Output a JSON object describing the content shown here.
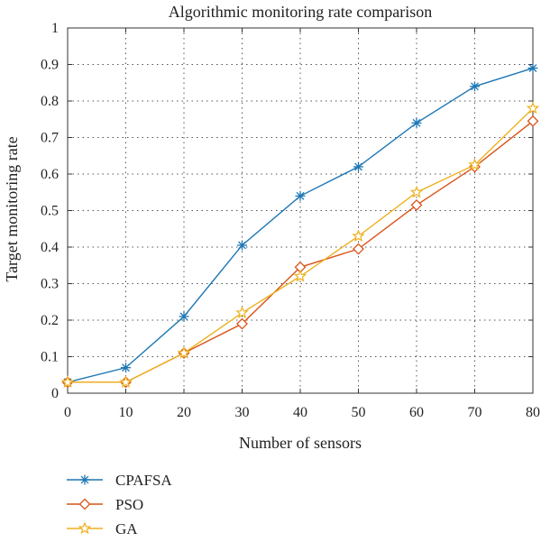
{
  "chart_data": {
    "type": "line",
    "title": "Algorithmic monitoring rate comparison",
    "xlabel": "Number of sensors",
    "ylabel": "Target monitoring rate",
    "x": [
      0,
      10,
      20,
      30,
      40,
      50,
      60,
      70,
      80
    ],
    "xlim": [
      0,
      80
    ],
    "ylim": [
      0,
      1
    ],
    "xticks": [
      "0",
      "10",
      "20",
      "30",
      "40",
      "50",
      "60",
      "70",
      "80"
    ],
    "yticks": [
      "0",
      "0.1",
      "0.2",
      "0.3",
      "0.4",
      "0.5",
      "0.6",
      "0.7",
      "0.8",
      "0.9",
      "1"
    ],
    "grid": true,
    "legend_position": "below",
    "series": [
      {
        "name": "CPAFSA",
        "color": "#1f77b4",
        "marker": "asterisk",
        "values": [
          0.03,
          0.07,
          0.21,
          0.405,
          0.54,
          0.62,
          0.74,
          0.84,
          0.89
        ]
      },
      {
        "name": "PSO",
        "color": "#d95319",
        "marker": "diamond",
        "values": [
          0.03,
          0.03,
          0.11,
          0.19,
          0.345,
          0.395,
          0.515,
          0.62,
          0.745
        ]
      },
      {
        "name": "GA",
        "color": "#edb120",
        "marker": "star",
        "values": [
          0.03,
          0.03,
          0.11,
          0.22,
          0.32,
          0.43,
          0.55,
          0.625,
          0.78
        ]
      }
    ]
  }
}
